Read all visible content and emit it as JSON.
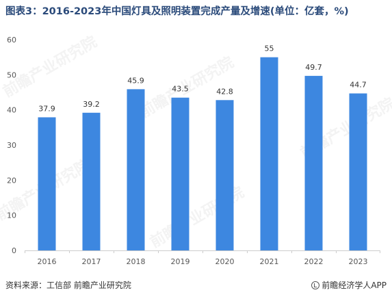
{
  "title": "图表3：2016-2023年中国灯具及照明装置完成产量及增速(单位：亿套，%)",
  "source": "资料来源：工信部 前瞻产业研究院",
  "brand": "前瞻经济学人APP",
  "watermark_text": "前瞻产业研究院",
  "colors": {
    "bar": "#3d87e0",
    "axis": "#cccccc",
    "tick_text": "#555555",
    "title": "#2a4a7a"
  },
  "chart_data": {
    "type": "bar",
    "title": "图表3：2016-2023年中国灯具及照明装置完成产量及增速(单位：亿套，%)",
    "xlabel": "",
    "ylabel": "",
    "categories": [
      "2016",
      "2017",
      "2018",
      "2019",
      "2020",
      "2021",
      "2022",
      "2023"
    ],
    "values": [
      37.9,
      39.2,
      45.9,
      43.5,
      42.8,
      55,
      49.7,
      44.7
    ],
    "data_labels": [
      "37.9",
      "39.2",
      "45.9",
      "43.5",
      "42.8",
      "55",
      "49.7",
      "44.7"
    ],
    "ylim": [
      0,
      60
    ],
    "yticks": [
      0,
      10,
      20,
      30,
      40,
      50,
      60
    ],
    "grid": false,
    "legend": "none"
  }
}
